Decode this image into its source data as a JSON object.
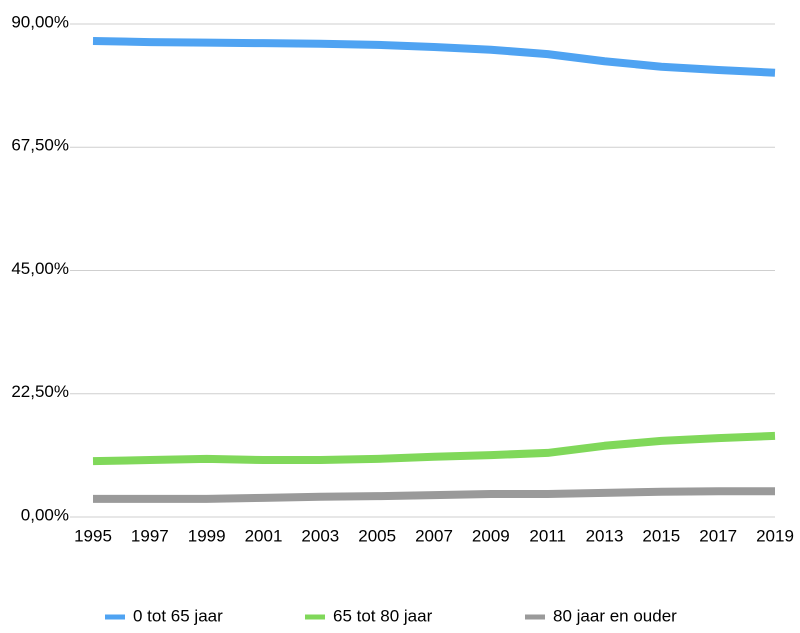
{
  "chart_data": {
    "type": "line",
    "categories": [
      "1995",
      "1997",
      "1999",
      "2001",
      "2003",
      "2005",
      "2007",
      "2009",
      "2011",
      "2013",
      "2015",
      "2017",
      "2019"
    ],
    "series": [
      {
        "name": "0 tot 65 jaar",
        "color": "#4fa3f2",
        "values": [
          86.9,
          86.7,
          86.6,
          86.5,
          86.4,
          86.2,
          85.8,
          85.3,
          84.5,
          83.2,
          82.2,
          81.6,
          81.1
        ]
      },
      {
        "name": "65 tot 80 jaar",
        "color": "#80d85a",
        "values": [
          10.2,
          10.4,
          10.6,
          10.4,
          10.4,
          10.6,
          11.0,
          11.3,
          11.7,
          13.0,
          13.9,
          14.4,
          14.8
        ]
      },
      {
        "name": "80 jaar en ouder",
        "color": "#9a9a9a",
        "values": [
          3.3,
          3.3,
          3.3,
          3.5,
          3.7,
          3.8,
          4.0,
          4.2,
          4.2,
          4.4,
          4.6,
          4.7,
          4.7
        ]
      }
    ],
    "ylim": [
      0,
      90
    ],
    "yticks": [
      {
        "value": 0,
        "label": "0,00%"
      },
      {
        "value": 22.5,
        "label": "22,50%"
      },
      {
        "value": 45,
        "label": "45,00%"
      },
      {
        "value": 67.5,
        "label": "67,50%"
      },
      {
        "value": 90,
        "label": "90,00%"
      }
    ],
    "grid": true,
    "legend": "bottom"
  }
}
